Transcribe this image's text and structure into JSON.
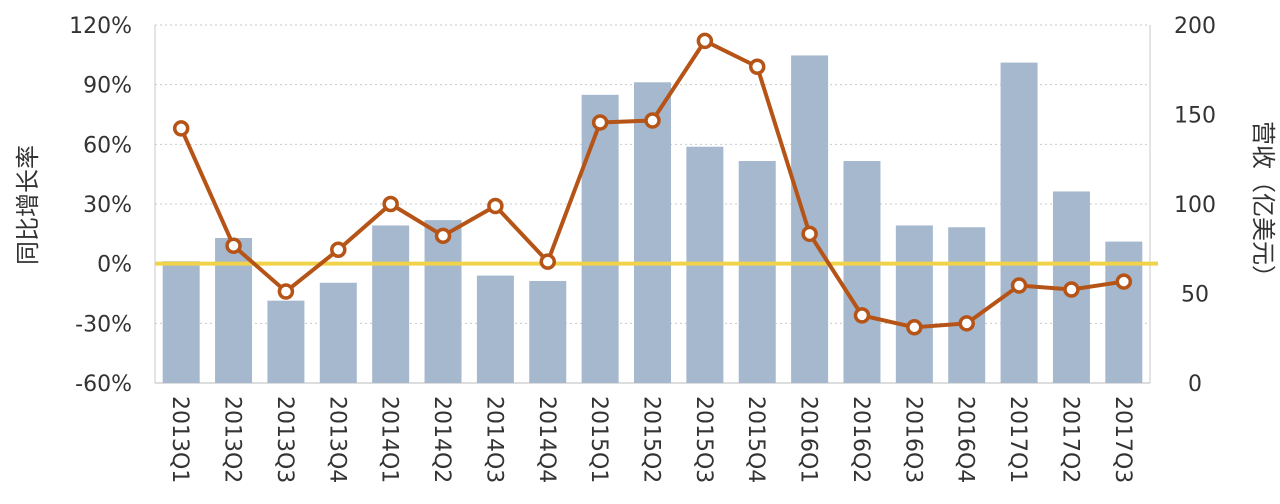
{
  "chart_data": {
    "type": "bar+line",
    "categories": [
      "2013Q1",
      "2013Q2",
      "2013Q3",
      "2013Q4",
      "2014Q1",
      "2014Q2",
      "2014Q3",
      "2014Q4",
      "2015Q1",
      "2015Q2",
      "2015Q3",
      "2015Q4",
      "2016Q1",
      "2016Q2",
      "2016Q3",
      "2016Q4",
      "2017Q1",
      "2017Q2",
      "2017Q3"
    ],
    "series": [
      {
        "type": "bar",
        "axis": "right",
        "values": [
          68,
          81,
          46,
          56,
          88,
          91,
          60,
          57,
          161,
          168,
          132,
          124,
          183,
          124,
          88,
          87,
          179,
          107,
          79
        ]
      },
      {
        "type": "line",
        "axis": "left",
        "values": [
          68,
          9,
          -14,
          7,
          30,
          14,
          29,
          1,
          71,
          72,
          112,
          99,
          15,
          -26,
          -32,
          -30,
          -11,
          -13,
          -9
        ]
      }
    ],
    "ylabel_left": "同比增长率",
    "ylabel_right": "营收（亿美元）",
    "ylim_left": [
      -60,
      120
    ],
    "yticks_left": [
      "120%",
      "90%",
      "60%",
      "30%",
      "0%",
      "-30%",
      "-60%"
    ],
    "yticks_left_values": [
      120,
      90,
      60,
      30,
      0,
      -30,
      -60
    ],
    "ylim_right": [
      0,
      200
    ],
    "yticks_right": [
      "200",
      "150",
      "100",
      "50",
      "0"
    ],
    "yticks_right_values": [
      200,
      150,
      100,
      50,
      0
    ],
    "reference_line": {
      "axis": "left",
      "value": 0
    },
    "grid": true,
    "colors": {
      "bar": "#a5b8ce",
      "line": "#b55416",
      "marker_fill": "#ffffff",
      "reference_line": "#f0d34b",
      "grid": "#c9c9c9"
    }
  }
}
